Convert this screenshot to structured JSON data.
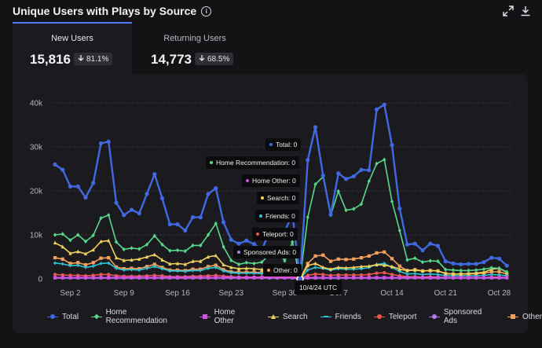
{
  "header": {
    "title": "Unique Users with Plays by Source",
    "info_icon": "info-icon",
    "expand_icon": "expand-icon",
    "download_icon": "download-icon"
  },
  "tabs": [
    {
      "label": "New Users",
      "value": "15,816",
      "change": "81.1%",
      "direction": "down"
    },
    {
      "label": "Returning Users",
      "value": "14,773",
      "change": "68.5%",
      "direction": "down"
    }
  ],
  "tooltip": {
    "date": "10/4/24 UTC",
    "rows": [
      {
        "label": "Total: 0",
        "color": "#4169e1"
      },
      {
        "label": "Home Recommendation: 0",
        "color": "#58d98a"
      },
      {
        "label": "Home Other: 0",
        "color": "#d44fe8"
      },
      {
        "label": "Search: 0",
        "color": "#f2d15c"
      },
      {
        "label": "Friends: 0",
        "color": "#2ec4d6"
      },
      {
        "label": "Teleport: 0",
        "color": "#e85a4a"
      },
      {
        "label": "Sponsored Ads: 0",
        "color": "#b07cf0"
      },
      {
        "label": "Other: 0",
        "color": "#f5a05a"
      }
    ]
  },
  "chart_data": {
    "type": "line",
    "title": "Unique Users with Plays by Source",
    "xlabel": "",
    "ylabel": "",
    "ylim": [
      0,
      40000
    ],
    "yticks": [
      "0",
      "10k",
      "20k",
      "30k",
      "40k"
    ],
    "xtick_labels": [
      "Sep 2",
      "Sep 9",
      "Sep 16",
      "Sep 23",
      "Sep 30",
      "Oct 7",
      "Oct 14",
      "Oct 21",
      "Oct 28"
    ],
    "x_start": "Aug 31",
    "days": 60,
    "series": [
      {
        "name": "Total",
        "color": "#4169e1",
        "marker": "circle",
        "values": [
          26000,
          24800,
          21000,
          21000,
          18500,
          21800,
          30800,
          31200,
          17300,
          14500,
          15700,
          14900,
          19300,
          23800,
          18300,
          12400,
          12400,
          11000,
          14000,
          14000,
          19300,
          20600,
          12900,
          8900,
          8000,
          8700,
          7900,
          6600,
          10600,
          11200,
          10800,
          14700,
          0,
          27000,
          34500,
          23500,
          14600,
          24000,
          22700,
          23300,
          24800,
          24700,
          38500,
          39600,
          30400,
          16000,
          7800,
          8000,
          6500,
          8000,
          7500,
          4000,
          3500,
          3300,
          3400,
          3400,
          3800,
          4800,
          4600,
          3000
        ]
      },
      {
        "name": "Home Recommendation",
        "color": "#58d98a",
        "marker": "diamond",
        "values": [
          10000,
          10200,
          8800,
          10000,
          8500,
          9900,
          13800,
          14500,
          8400,
          6700,
          7000,
          6800,
          7800,
          9800,
          7800,
          6400,
          6500,
          6300,
          7600,
          7600,
          10000,
          12600,
          7300,
          4200,
          3300,
          3700,
          3500,
          3800,
          5500,
          6500,
          4100,
          8400,
          0,
          14000,
          21500,
          23200,
          14500,
          19900,
          15600,
          15900,
          17000,
          22200,
          26200,
          27100,
          17600,
          11000,
          4300,
          4700,
          3800,
          4100,
          4000,
          2100,
          2000,
          1900,
          1900,
          2000,
          2200,
          2500,
          2400,
          1600
        ]
      },
      {
        "name": "Home Other",
        "color": "#d44fe8",
        "marker": "square",
        "values": [
          300,
          300,
          300,
          300,
          300,
          300,
          300,
          300,
          300,
          300,
          300,
          300,
          300,
          300,
          300,
          300,
          300,
          300,
          300,
          300,
          300,
          300,
          300,
          300,
          300,
          300,
          300,
          300,
          300,
          300,
          300,
          300,
          0,
          300,
          300,
          300,
          300,
          300,
          300,
          300,
          300,
          300,
          300,
          300,
          300,
          300,
          300,
          300,
          300,
          300,
          300,
          300,
          300,
          300,
          300,
          300,
          300,
          300,
          300,
          300
        ]
      },
      {
        "name": "Search",
        "color": "#f2d15c",
        "marker": "triangle",
        "values": [
          8200,
          7300,
          5800,
          6200,
          5700,
          6600,
          8500,
          8700,
          4800,
          4200,
          4300,
          4500,
          5000,
          5500,
          4300,
          3400,
          3500,
          3300,
          4000,
          4000,
          5000,
          5300,
          3200,
          2600,
          2300,
          2400,
          2300,
          2100,
          2700,
          2900,
          2600,
          3000,
          0,
          3000,
          3500,
          2600,
          2200,
          2600,
          2500,
          2600,
          2800,
          2900,
          3200,
          3100,
          2800,
          2200,
          1900,
          2000,
          1800,
          1900,
          1800,
          1200,
          1100,
          1100,
          1200,
          1300,
          1500,
          2200,
          2400,
          1500
        ]
      },
      {
        "name": "Friends",
        "color": "#2ec4d6",
        "marker": "cross",
        "values": [
          3600,
          3400,
          3000,
          3100,
          2600,
          2900,
          3500,
          3600,
          2400,
          2000,
          2100,
          2000,
          2400,
          2800,
          2300,
          1800,
          1800,
          1700,
          1900,
          1900,
          2400,
          2600,
          1800,
          1400,
          1300,
          1300,
          1300,
          1200,
          1400,
          1500,
          1400,
          1700,
          0,
          2000,
          2600,
          2400,
          2000,
          2300,
          2200,
          2200,
          2300,
          2600,
          3300,
          3500,
          2600,
          1700,
          1100,
          1200,
          1000,
          1100,
          1000,
          700,
          700,
          700,
          700,
          700,
          800,
          1000,
          900,
          700
        ]
      },
      {
        "name": "Teleport",
        "color": "#e85a4a",
        "marker": "circle",
        "values": [
          1000,
          900,
          800,
          800,
          700,
          800,
          1000,
          1000,
          700,
          600,
          600,
          600,
          700,
          800,
          700,
          500,
          500,
          500,
          600,
          600,
          700,
          800,
          600,
          500,
          400,
          400,
          400,
          400,
          500,
          500,
          500,
          600,
          0,
          800,
          1100,
          1000,
          800,
          900,
          900,
          900,
          900,
          1000,
          1300,
          1400,
          1000,
          700,
          500,
          500,
          400,
          500,
          400,
          300,
          300,
          300,
          300,
          300,
          300,
          400,
          400,
          300
        ]
      },
      {
        "name": "Sponsored Ads",
        "color": "#b07cf0",
        "marker": "circle",
        "values": [
          200,
          200,
          200,
          200,
          200,
          200,
          200,
          200,
          200,
          200,
          200,
          200,
          200,
          200,
          200,
          200,
          200,
          200,
          200,
          200,
          200,
          200,
          200,
          200,
          200,
          200,
          200,
          200,
          200,
          200,
          200,
          200,
          0,
          200,
          200,
          200,
          200,
          200,
          200,
          200,
          200,
          200,
          200,
          200,
          200,
          200,
          200,
          200,
          200,
          200,
          200,
          200,
          200,
          200,
          200,
          200,
          200,
          200,
          200,
          200
        ]
      },
      {
        "name": "Other",
        "color": "#f5a05a",
        "marker": "square",
        "values": [
          4800,
          4500,
          3500,
          3700,
          3200,
          3700,
          4700,
          4800,
          2700,
          2300,
          2400,
          2300,
          2800,
          3300,
          2600,
          2000,
          2000,
          1900,
          2200,
          2200,
          2800,
          3100,
          2100,
          1600,
          1500,
          1500,
          1500,
          1400,
          1700,
          1800,
          1700,
          2200,
          0,
          3500,
          5200,
          5400,
          4000,
          4500,
          4400,
          4500,
          4800,
          5200,
          5900,
          6100,
          4600,
          2900,
          1900,
          2100,
          1800,
          1900,
          1800,
          1200,
          1100,
          1100,
          1100,
          1200,
          1300,
          1600,
          1600,
          1100
        ]
      }
    ]
  }
}
